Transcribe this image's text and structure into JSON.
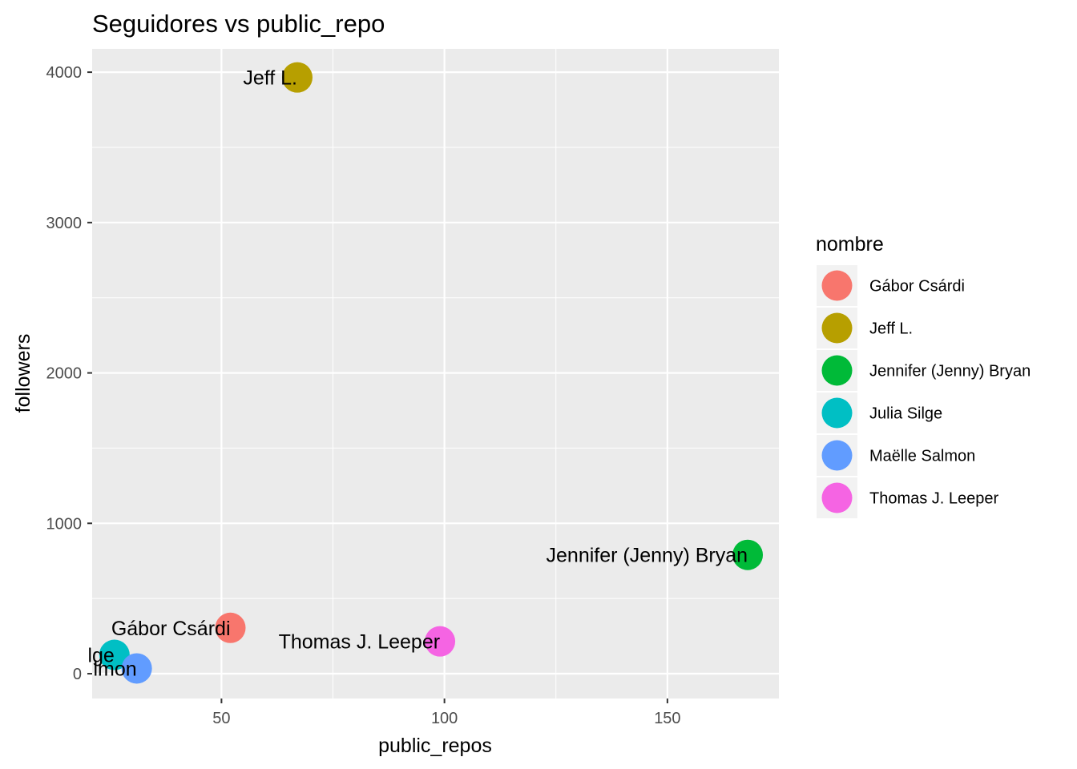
{
  "chart_data": {
    "type": "scatter",
    "title": "Seguidores vs public_repo",
    "xlabel": "public_repos",
    "ylabel": "followers",
    "xlim": [
      21,
      175
    ],
    "ylim": [
      -165,
      4155
    ],
    "xticks": [
      50,
      100,
      150
    ],
    "yticks": [
      0,
      1000,
      2000,
      3000,
      4000
    ],
    "grid": true,
    "legend": {
      "title": "nombre",
      "placement": "right"
    },
    "points": [
      {
        "name": "Gábor Csárdi",
        "label": "Gábor Csárdi",
        "x": 52,
        "y": 305,
        "color": "#F8766D",
        "label_anchor": "end",
        "label_dx": 0,
        "label_dy": 0
      },
      {
        "name": "Jeff L.",
        "label": "Jeff L.",
        "x": 67,
        "y": 3965,
        "color": "#B79F00",
        "label_anchor": "end",
        "label_dx": 0,
        "label_dy": 0
      },
      {
        "name": "Jennifer (Jenny) Bryan",
        "label": "Jennifer (Jenny) Bryan",
        "x": 168,
        "y": 790,
        "color": "#00BA38",
        "label_anchor": "end",
        "label_dx": 0,
        "label_dy": 0
      },
      {
        "name": "Julia Silge",
        "label": "lge",
        "x": 26,
        "y": 125,
        "color": "#00BFC4",
        "label_anchor": "end",
        "label_dx": 0,
        "label_dy": 0
      },
      {
        "name": "Maëlle Salmon",
        "label": "lmon",
        "x": 31,
        "y": 35,
        "color": "#619CFF",
        "label_anchor": "end",
        "label_dx": 0,
        "label_dy": 0
      },
      {
        "name": "Thomas J. Leeper",
        "label": "Thomas J. Leeper",
        "x": 99,
        "y": 215,
        "color": "#F564E3",
        "label_anchor": "end",
        "label_dx": 0,
        "label_dy": 0
      }
    ]
  }
}
